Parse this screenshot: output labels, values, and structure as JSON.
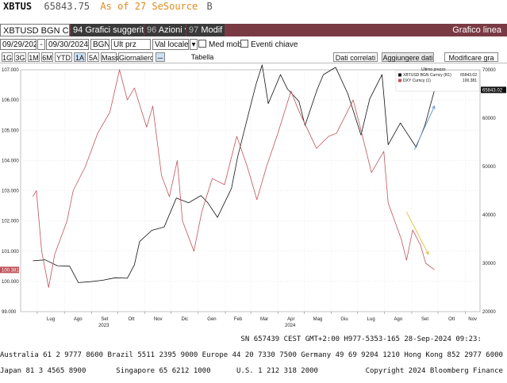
{
  "header": {
    "symbol": "XBTUS",
    "price": "65843.75",
    "as_of": "As of 27 Se",
    "source": "Source",
    "source_code": "B"
  },
  "toolbar": {
    "security": "XBTUSD BGN Curncy",
    "suggested_num": "94",
    "suggested": "Grafici suggeriti",
    "actions_num": "96",
    "actions": "Azioni",
    "modify_num": "97",
    "modify": "Modif",
    "title": "Grafico linea"
  },
  "controls": {
    "start_date": "09/29/2023",
    "end_date": "09/30/2024",
    "source": "BGN",
    "field": "Ult prz",
    "currency": "Val locale",
    "med_mob": "Med mob",
    "events": "Eventi chiave"
  },
  "ranges": [
    "1G",
    "3G",
    "1M",
    "6M",
    "YTD",
    "1A",
    "5A",
    "Mass",
    "Giornaliero"
  ],
  "selected_range": "1A",
  "tabs": {
    "table": "Tabella",
    "related": "Dati correlati",
    "add": "Aggiungere dati",
    "modify": "Modificare gra"
  },
  "chart_data": {
    "type": "line",
    "legend_title": "Ultimo prezzo",
    "legend_placement": "top-right",
    "x_tick_labels": [
      "Lug",
      "Ago",
      "Set",
      "Ott",
      "Nov",
      "Dic",
      "Gen",
      "Feb",
      "Mar",
      "Apr",
      "Mag",
      "Giu",
      "Lug",
      "Ago",
      "Set",
      "Ott",
      "Nov"
    ],
    "year_labels": [
      "2023",
      "2024"
    ],
    "series": [
      {
        "name": "XBTUSD BGN Curncy (R1)",
        "last": "65843.02",
        "axis": "right",
        "color": "#111111",
        "x": [
          "2023-06-26",
          "2023-07-10",
          "2023-07-24",
          "2023-08-07",
          "2023-08-17",
          "2023-08-31",
          "2023-09-14",
          "2023-09-28",
          "2023-10-12",
          "2023-10-20",
          "2023-10-26",
          "2023-11-09",
          "2023-11-23",
          "2023-12-07",
          "2023-12-21",
          "2024-01-04",
          "2024-01-12",
          "2024-01-23",
          "2024-02-08",
          "2024-02-15",
          "2024-02-29",
          "2024-03-07",
          "2024-03-14",
          "2024-03-21",
          "2024-04-04",
          "2024-04-12",
          "2024-04-25",
          "2024-05-02",
          "2024-05-16",
          "2024-05-23",
          "2024-06-06",
          "2024-06-20",
          "2024-07-05",
          "2024-07-15",
          "2024-07-29",
          "2024-08-05",
          "2024-08-19",
          "2024-09-06",
          "2024-09-16",
          "2024-09-27"
        ],
        "y": [
          30500,
          30700,
          29500,
          29400,
          26000,
          26200,
          26500,
          27000,
          26900,
          29700,
          34500,
          36800,
          37500,
          43500,
          42500,
          44000,
          42500,
          39500,
          45500,
          52000,
          62000,
          67000,
          71000,
          63000,
          69000,
          66000,
          63500,
          58500,
          66000,
          69000,
          70500,
          65000,
          56500,
          64000,
          69000,
          54500,
          59000,
          54000,
          58500,
          65843
        ]
      },
      {
        "name": "DXY Curncy (1)",
        "last": "100.381",
        "axis": "left",
        "color": "#c0545c",
        "x": [
          "2023-06-26",
          "2023-06-30",
          "2023-07-06",
          "2023-07-14",
          "2023-07-21",
          "2023-08-04",
          "2023-08-11",
          "2023-08-25",
          "2023-09-08",
          "2023-09-22",
          "2023-10-03",
          "2023-10-12",
          "2023-10-20",
          "2023-11-03",
          "2023-11-10",
          "2023-11-20",
          "2023-11-29",
          "2023-12-08",
          "2023-12-14",
          "2023-12-27",
          "2024-01-05",
          "2024-01-17",
          "2024-01-31",
          "2024-02-14",
          "2024-02-26",
          "2024-03-08",
          "2024-03-19",
          "2024-04-01",
          "2024-04-16",
          "2024-04-24",
          "2024-05-15",
          "2024-05-29",
          "2024-06-07",
          "2024-06-26",
          "2024-07-05",
          "2024-07-17",
          "2024-07-31",
          "2024-08-05",
          "2024-08-20",
          "2024-08-26",
          "2024-09-02",
          "2024-09-11",
          "2024-09-17",
          "2024-09-27"
        ],
        "y": [
          102.8,
          103.0,
          101.0,
          99.8,
          100.9,
          102.0,
          103.0,
          103.8,
          104.9,
          105.6,
          107.0,
          106.0,
          106.4,
          105.1,
          105.8,
          103.5,
          102.8,
          104.0,
          102.0,
          101.0,
          102.3,
          103.4,
          103.2,
          104.8,
          103.8,
          102.7,
          103.8,
          104.9,
          106.3,
          105.7,
          104.4,
          104.8,
          104.9,
          106.0,
          105.0,
          103.6,
          104.3,
          102.6,
          101.4,
          100.7,
          101.7,
          101.2,
          100.6,
          100.381
        ]
      }
    ],
    "left_ylim": [
      99,
      107
    ],
    "left_ticks": [
      "99.000",
      "100.000",
      "101.000",
      "102.000",
      "103.000",
      "104.000",
      "105.000",
      "106.000",
      "107.000"
    ],
    "right_ylim": [
      20000,
      70000
    ],
    "right_ticks": [
      "20000",
      "30000",
      "40000",
      "50000",
      "60000",
      "70000"
    ],
    "left_current_label": "100.381",
    "right_current_label": "65843.02",
    "annotations": [
      {
        "kind": "arrow",
        "color": "#6a9ed0",
        "from": {
          "x": "2024-09-04",
          "y": 53500
        },
        "to": {
          "x": "2024-09-27",
          "y": 62500
        }
      },
      {
        "kind": "arrow",
        "color": "#d8c64a",
        "from": {
          "x": "2024-08-26",
          "y": 102.3
        },
        "to": {
          "x": "2024-09-20",
          "y": 100.9
        }
      }
    ],
    "grid": true
  },
  "footer": {
    "line1": "                                                        SN 657439 CEST GMT+2:00 H977-5353-165 28-Sep-2024 09:23:",
    "line2": "Australia 61 2 9777 8600 Brazil 5511 2395 9000 Europe 44 20 7330 7500 Germany 49 69 9204 1210 Hong Kong 852 2977 6000",
    "line3": "Japan 81 3 4565 8900       Singapore 65 6212 1000      U.S. 1 212 318 2000           Copyright 2024 Bloomberg Finance L.P."
  }
}
